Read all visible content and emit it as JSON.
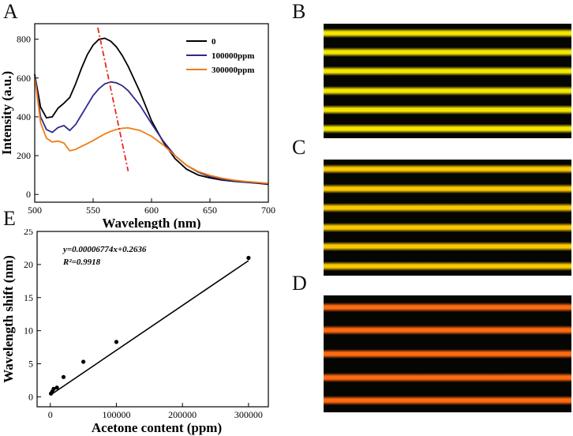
{
  "panels": {
    "A": "A",
    "B": "B",
    "C": "C",
    "D": "D",
    "E": "E"
  },
  "colors": {
    "series_0": "#000000",
    "series_100000": "#2e2a8c",
    "series_300000": "#f07c14",
    "trend_line": "#e8281e",
    "photo_B": "#f5e600",
    "photo_C": "#f9c800",
    "photo_D": "#ff6a10"
  },
  "photos": {
    "B": {
      "stripe_count": 6,
      "color_key": "photo_B"
    },
    "C": {
      "stripe_count": 6,
      "color_key": "photo_C"
    },
    "D": {
      "stripe_count": 5,
      "color_key": "photo_D"
    }
  },
  "chart_data": [
    {
      "id": "A",
      "type": "line",
      "xlabel": "Wavelength (nm)",
      "ylabel": "Intensity (a.u.)",
      "xlim": [
        500,
        700
      ],
      "ylim": [
        -40,
        880
      ],
      "xticks": [
        500,
        550,
        600,
        650,
        700
      ],
      "yticks": [
        0,
        200,
        400,
        600,
        800
      ],
      "legend_position": "top-right",
      "series": [
        {
          "name": "0",
          "color_key": "series_0",
          "x": [
            500,
            505,
            510,
            515,
            520,
            525,
            530,
            535,
            540,
            545,
            550,
            555,
            560,
            565,
            570,
            575,
            580,
            590,
            600,
            610,
            620,
            630,
            640,
            650,
            660,
            670,
            680,
            690,
            700
          ],
          "y": [
            620,
            450,
            395,
            400,
            445,
            470,
            500,
            570,
            650,
            720,
            770,
            800,
            805,
            790,
            760,
            715,
            660,
            530,
            380,
            270,
            185,
            130,
            100,
            85,
            75,
            68,
            63,
            58,
            52
          ]
        },
        {
          "name": "100000ppm",
          "color_key": "series_100000",
          "x": [
            500,
            505,
            510,
            515,
            520,
            525,
            530,
            535,
            540,
            545,
            550,
            555,
            560,
            565,
            570,
            575,
            580,
            590,
            600,
            610,
            620,
            630,
            640,
            650,
            660,
            670,
            680,
            690,
            700
          ],
          "y": [
            620,
            400,
            335,
            320,
            345,
            355,
            330,
            360,
            410,
            460,
            510,
            545,
            570,
            580,
            575,
            560,
            535,
            460,
            365,
            275,
            200,
            150,
            115,
            92,
            78,
            70,
            64,
            60,
            55
          ]
        },
        {
          "name": "300000ppm",
          "color_key": "series_300000",
          "x": [
            500,
            505,
            510,
            515,
            520,
            525,
            530,
            535,
            540,
            545,
            550,
            555,
            560,
            565,
            570,
            575,
            580,
            590,
            600,
            610,
            620,
            630,
            640,
            650,
            660,
            670,
            680,
            690,
            700
          ],
          "y": [
            610,
            370,
            290,
            270,
            275,
            265,
            225,
            232,
            248,
            262,
            278,
            295,
            312,
            325,
            335,
            341,
            343,
            330,
            300,
            255,
            200,
            150,
            118,
            98,
            84,
            74,
            67,
            62,
            57
          ]
        }
      ],
      "annotations": {
        "trend_line": {
          "x": [
            554,
            580
          ],
          "y": [
            860,
            120
          ],
          "style": "dash-dot",
          "color_key": "trend_line"
        }
      }
    },
    {
      "id": "E",
      "type": "scatter",
      "xlabel": "Acetone content (ppm)",
      "ylabel": "Wavelength shift (nm)",
      "xlim": [
        -20000,
        330000
      ],
      "ylim": [
        -1.5,
        25
      ],
      "xticks": [
        0,
        100000,
        200000,
        300000
      ],
      "xtick_labels": [
        "0",
        "100000",
        "200000",
        "300000"
      ],
      "yticks": [
        0,
        5,
        10,
        15,
        20,
        25
      ],
      "points": {
        "x": [
          1000,
          3000,
          5000,
          10000,
          20000,
          50000,
          100000,
          300000
        ],
        "y": [
          0.5,
          0.8,
          1.2,
          1.4,
          3.0,
          5.3,
          8.3,
          21.0
        ]
      },
      "fit": {
        "slope": 6.774e-05,
        "intercept": 0.2636,
        "x_range": [
          0,
          300000
        ]
      },
      "equation": "y=0.00006774x+0.2636",
      "r_squared": "R²=0.9918"
    }
  ]
}
